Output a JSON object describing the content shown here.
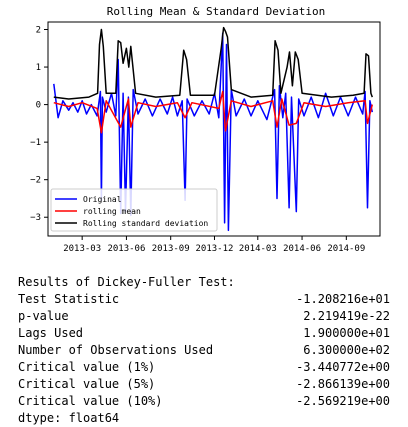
{
  "chart_data": {
    "type": "line",
    "title": "Rolling Mean & Standard Deviation",
    "xlabel": "",
    "ylabel": "",
    "x_range": [
      "2012-12-20",
      "2014-11-10"
    ],
    "ylim": [
      -3.5,
      2.2
    ],
    "x_ticks": [
      {
        "date": "2013-03-01",
        "label": "2013-03"
      },
      {
        "date": "2013-06-01",
        "label": "2013-06"
      },
      {
        "date": "2013-09-01",
        "label": "2013-09"
      },
      {
        "date": "2013-12-01",
        "label": "2013-12"
      },
      {
        "date": "2014-03-01",
        "label": "2014-03"
      },
      {
        "date": "2014-06-01",
        "label": "2014-06"
      },
      {
        "date": "2014-09-01",
        "label": "2014-09"
      }
    ],
    "y_ticks": [
      {
        "value": 2,
        "label": "2"
      },
      {
        "value": 1,
        "label": "1"
      },
      {
        "value": 0,
        "label": "0"
      },
      {
        "value": -1,
        "label": "−1"
      },
      {
        "value": -2,
        "label": "−2"
      },
      {
        "value": -3,
        "label": "−3"
      }
    ],
    "grid": false,
    "legend_position": "lower-left",
    "series": [
      {
        "name": "Original",
        "color": "#0000ff",
        "points": [
          [
            "2013-01-01",
            0.55
          ],
          [
            "2013-01-10",
            -0.35
          ],
          [
            "2013-01-20",
            0.1
          ],
          [
            "2013-02-01",
            -0.15
          ],
          [
            "2013-02-10",
            0.05
          ],
          [
            "2013-02-20",
            -0.2
          ],
          [
            "2013-03-01",
            0.1
          ],
          [
            "2013-03-10",
            -0.25
          ],
          [
            "2013-03-20",
            0.0
          ],
          [
            "2013-04-01",
            -0.3
          ],
          [
            "2013-04-08",
            0.35
          ],
          [
            "2013-04-10",
            -2.55
          ],
          [
            "2013-04-12",
            0.2
          ],
          [
            "2013-04-20",
            -0.2
          ],
          [
            "2013-05-01",
            0.3
          ],
          [
            "2013-05-10",
            -0.3
          ],
          [
            "2013-05-15",
            1.2
          ],
          [
            "2013-05-20",
            -2.9
          ],
          [
            "2013-05-25",
            0.3
          ],
          [
            "2013-05-30",
            -2.85
          ],
          [
            "2013-06-05",
            0.2
          ],
          [
            "2013-06-10",
            -2.95
          ],
          [
            "2013-06-15",
            0.4
          ],
          [
            "2013-06-25",
            -0.25
          ],
          [
            "2013-07-10",
            0.15
          ],
          [
            "2013-07-25",
            -0.3
          ],
          [
            "2013-08-10",
            0.15
          ],
          [
            "2013-08-25",
            -0.25
          ],
          [
            "2013-09-05",
            0.2
          ],
          [
            "2013-09-15",
            -0.3
          ],
          [
            "2013-09-25",
            0.1
          ],
          [
            "2013-10-01",
            -2.55
          ],
          [
            "2013-10-05",
            0.15
          ],
          [
            "2013-10-20",
            -0.3
          ],
          [
            "2013-11-05",
            0.1
          ],
          [
            "2013-11-20",
            -0.25
          ],
          [
            "2013-12-01",
            0.3
          ],
          [
            "2013-12-10",
            -0.35
          ],
          [
            "2013-12-18",
            1.9
          ],
          [
            "2013-12-22",
            -3.15
          ],
          [
            "2013-12-26",
            1.6
          ],
          [
            "2013-12-30",
            -3.35
          ],
          [
            "2014-01-05",
            0.4
          ],
          [
            "2014-01-15",
            -0.3
          ],
          [
            "2014-02-01",
            0.15
          ],
          [
            "2014-02-15",
            -0.3
          ],
          [
            "2014-03-01",
            0.1
          ],
          [
            "2014-03-20",
            -0.4
          ],
          [
            "2014-04-05",
            0.4
          ],
          [
            "2014-04-10",
            -2.5
          ],
          [
            "2014-04-15",
            0.5
          ],
          [
            "2014-04-22",
            -0.35
          ],
          [
            "2014-04-28",
            0.3
          ],
          [
            "2014-05-05",
            -2.75
          ],
          [
            "2014-05-10",
            0.2
          ],
          [
            "2014-05-20",
            -2.85
          ],
          [
            "2014-05-25",
            0.15
          ],
          [
            "2014-06-05",
            -0.3
          ],
          [
            "2014-06-20",
            0.2
          ],
          [
            "2014-07-05",
            -0.35
          ],
          [
            "2014-07-20",
            0.3
          ],
          [
            "2014-08-05",
            -0.3
          ],
          [
            "2014-08-20",
            0.2
          ],
          [
            "2014-09-05",
            -0.3
          ],
          [
            "2014-09-20",
            0.2
          ],
          [
            "2014-10-05",
            -0.25
          ],
          [
            "2014-10-10",
            0.35
          ],
          [
            "2014-10-15",
            -2.75
          ],
          [
            "2014-10-20",
            0.1
          ],
          [
            "2014-10-25",
            -0.2
          ]
        ]
      },
      {
        "name": "rolling mean",
        "color": "#ff0000",
        "points": [
          [
            "2013-01-01",
            0.05
          ],
          [
            "2013-02-01",
            -0.05
          ],
          [
            "2013-03-01",
            0.05
          ],
          [
            "2013-04-01",
            -0.1
          ],
          [
            "2013-04-10",
            -0.75
          ],
          [
            "2013-04-20",
            0.1
          ],
          [
            "2013-05-20",
            -0.6
          ],
          [
            "2013-06-05",
            0.15
          ],
          [
            "2013-06-10",
            -0.6
          ],
          [
            "2013-06-25",
            0.05
          ],
          [
            "2013-08-01",
            -0.05
          ],
          [
            "2013-09-15",
            0.05
          ],
          [
            "2013-10-01",
            -0.35
          ],
          [
            "2013-10-15",
            0.05
          ],
          [
            "2013-12-10",
            -0.1
          ],
          [
            "2013-12-18",
            0.35
          ],
          [
            "2013-12-24",
            -0.7
          ],
          [
            "2014-01-05",
            0.1
          ],
          [
            "2014-02-15",
            -0.05
          ],
          [
            "2014-04-01",
            0.1
          ],
          [
            "2014-04-10",
            -0.6
          ],
          [
            "2014-04-20",
            0.15
          ],
          [
            "2014-05-05",
            -0.55
          ],
          [
            "2014-05-20",
            -0.5
          ],
          [
            "2014-06-05",
            0.05
          ],
          [
            "2014-07-20",
            -0.05
          ],
          [
            "2014-09-05",
            0.05
          ],
          [
            "2014-10-10",
            0.1
          ],
          [
            "2014-10-15",
            -0.5
          ],
          [
            "2014-10-25",
            0.0
          ]
        ]
      },
      {
        "name": "Rolling standard deviation",
        "color": "#000000",
        "points": [
          [
            "2013-01-01",
            0.2
          ],
          [
            "2013-02-01",
            0.15
          ],
          [
            "2013-03-15",
            0.2
          ],
          [
            "2013-04-02",
            0.3
          ],
          [
            "2013-04-06",
            1.6
          ],
          [
            "2013-04-10",
            2.0
          ],
          [
            "2013-04-14",
            1.55
          ],
          [
            "2013-04-20",
            0.3
          ],
          [
            "2013-05-10",
            0.3
          ],
          [
            "2013-05-15",
            1.7
          ],
          [
            "2013-05-20",
            1.65
          ],
          [
            "2013-05-25",
            1.1
          ],
          [
            "2013-06-01",
            1.5
          ],
          [
            "2013-06-06",
            1.0
          ],
          [
            "2013-06-10",
            1.55
          ],
          [
            "2013-06-20",
            0.3
          ],
          [
            "2013-08-01",
            0.2
          ],
          [
            "2013-09-20",
            0.25
          ],
          [
            "2013-09-28",
            1.45
          ],
          [
            "2013-10-04",
            1.2
          ],
          [
            "2013-10-12",
            0.25
          ],
          [
            "2013-12-01",
            0.25
          ],
          [
            "2013-12-15",
            1.5
          ],
          [
            "2013-12-20",
            2.05
          ],
          [
            "2013-12-24",
            1.95
          ],
          [
            "2013-12-28",
            1.8
          ],
          [
            "2014-01-05",
            0.4
          ],
          [
            "2014-02-15",
            0.2
          ],
          [
            "2014-04-01",
            0.25
          ],
          [
            "2014-04-06",
            1.7
          ],
          [
            "2014-04-12",
            1.45
          ],
          [
            "2014-04-18",
            0.3
          ],
          [
            "2014-05-01",
            1.0
          ],
          [
            "2014-05-06",
            1.4
          ],
          [
            "2014-05-12",
            0.5
          ],
          [
            "2014-05-18",
            1.4
          ],
          [
            "2014-05-24",
            1.2
          ],
          [
            "2014-06-01",
            0.3
          ],
          [
            "2014-08-01",
            0.2
          ],
          [
            "2014-09-15",
            0.25
          ],
          [
            "2014-10-08",
            0.3
          ],
          [
            "2014-10-12",
            1.35
          ],
          [
            "2014-10-17",
            1.3
          ],
          [
            "2014-10-22",
            0.3
          ],
          [
            "2014-10-25",
            0.2
          ]
        ]
      }
    ]
  },
  "results": {
    "heading": "Results of Dickey-Fuller Test:",
    "rows": [
      {
        "label": "Test Statistic",
        "value": "-1.208216e+01"
      },
      {
        "label": "p-value",
        "value": "2.219419e-22"
      },
      {
        "label": "Lags Used",
        "value": "1.900000e+01"
      },
      {
        "label": "Number of Observations Used",
        "value": "6.300000e+02"
      },
      {
        "label": "Critical value (1%)",
        "value": "-3.440772e+00"
      },
      {
        "label": "Critical value (5%)",
        "value": "-2.866139e+00"
      },
      {
        "label": "Critical value (10%)",
        "value": "-2.569219e+00"
      }
    ],
    "dtype": "dtype: float64"
  }
}
